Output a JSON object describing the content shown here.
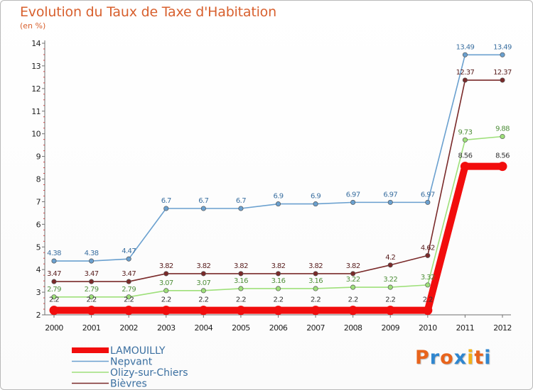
{
  "title": "Evolution du Taux de Taxe d'Habitation",
  "unit": "(en %)",
  "logo": {
    "text": "Proxiti",
    "colors": [
      "#e8641c",
      "#2f86cf",
      "#e8641c",
      "#2f86cf",
      "#f2b21a",
      "#e8641c",
      "#2f86cf"
    ]
  },
  "colors": {
    "title": "#d8602e",
    "axis": "#6f6f6f",
    "grid": "#e8e8e8"
  },
  "chart_data": {
    "type": "line",
    "title": "Evolution du Taux de Taxe d'Habitation",
    "ylabel": "(en %)",
    "xlabel": "",
    "x": [
      "2000",
      "2001",
      "2002",
      "2003",
      "2004",
      "2005",
      "2006",
      "2007",
      "2008",
      "2009",
      "2010",
      "2011",
      "2012"
    ],
    "ylim": [
      2,
      14
    ],
    "yticks": [
      2,
      3,
      4,
      5,
      6,
      7,
      8,
      9,
      10,
      11,
      12,
      13,
      14
    ],
    "grid": false,
    "legend": "bottom-left",
    "series": [
      {
        "name": "LAMOUILLY",
        "color": "#f20d0d",
        "emphasis": true,
        "show_labels": false,
        "values": [
          2.2,
          2.2,
          2.2,
          2.2,
          2.2,
          2.2,
          2.2,
          2.2,
          2.2,
          2.2,
          2.2,
          8.56,
          8.56
        ]
      },
      {
        "name": "Nepvant",
        "color": "#6aa0cf",
        "emphasis": false,
        "show_labels": true,
        "values": [
          4.38,
          4.38,
          4.47,
          6.7,
          6.7,
          6.7,
          6.9,
          6.9,
          6.97,
          6.97,
          6.97,
          13.49,
          13.49
        ],
        "labels": [
          "4.38",
          "4.38",
          "4.47",
          "6.7",
          "6.7",
          "6.7",
          "6.9",
          "6.9",
          "6.97",
          "6.97",
          "6.97",
          "13.49",
          "13.49"
        ]
      },
      {
        "name": "Olizy-sur-Chiers",
        "color": "#9ee07a",
        "emphasis": false,
        "show_labels": true,
        "values": [
          2.79,
          2.79,
          2.79,
          3.07,
          3.07,
          3.16,
          3.16,
          3.16,
          3.22,
          3.22,
          3.32,
          9.73,
          9.88
        ],
        "labels": [
          "2.79",
          "2.79",
          "2.79",
          "3.07",
          "3.07",
          "3.16",
          "3.16",
          "3.16",
          "3.22",
          "3.22",
          "3.32",
          "9.73",
          "9.88"
        ]
      },
      {
        "name": "Bièvres",
        "color": "#7a2a2a",
        "emphasis": false,
        "show_labels": true,
        "values": [
          3.47,
          3.47,
          3.47,
          3.82,
          3.82,
          3.82,
          3.82,
          3.82,
          3.82,
          4.2,
          4.62,
          12.37,
          12.37
        ],
        "labels": [
          "3.47",
          "3.47",
          "3.47",
          "3.82",
          "3.82",
          "3.82",
          "3.82",
          "3.82",
          "3.82",
          "4.2",
          "4.62",
          "12.37",
          "12.37"
        ]
      }
    ],
    "flat_labels": [
      "2.2",
      "2.2",
      "2.2",
      "2.2",
      "2.2",
      "2.2",
      "2.2",
      "2.2",
      "2.2",
      "2.2",
      "2.2",
      "8.56",
      "8.56"
    ]
  }
}
